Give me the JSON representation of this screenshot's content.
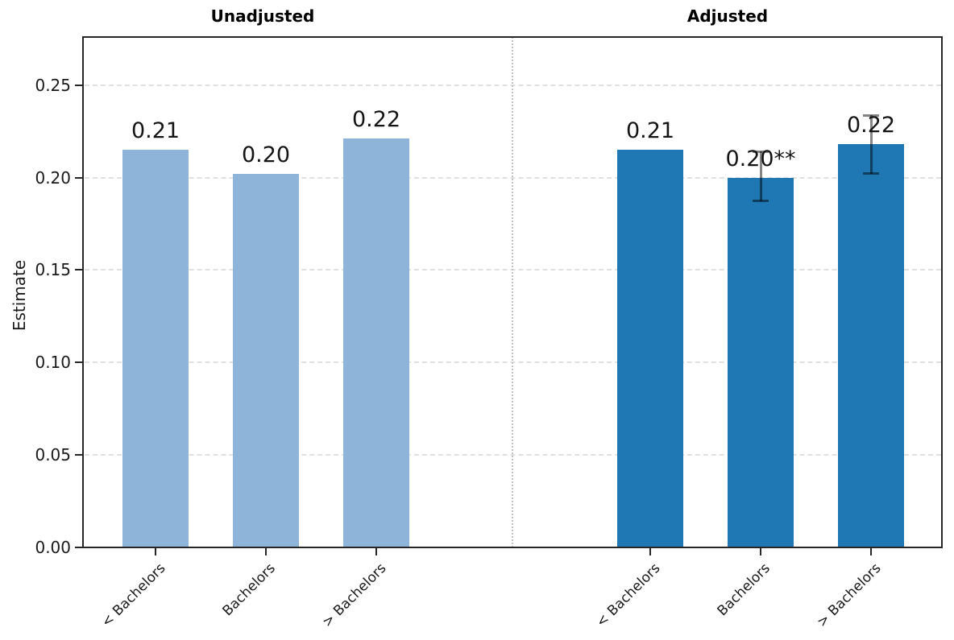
{
  "ylabel": "Estimate",
  "yticks": [
    "0.00",
    "0.05",
    "0.10",
    "0.15",
    "0.20",
    "0.25"
  ],
  "chart_data": [
    {
      "type": "bar",
      "title": "Unadjusted",
      "categories": [
        "< Bachelors",
        "Bachelors",
        "> Bachelors"
      ],
      "values": [
        0.215,
        0.202,
        0.221
      ],
      "bar_labels": [
        "0.21",
        "0.20",
        "0.22"
      ],
      "errors": [
        null,
        null,
        null
      ],
      "bar_color": "#8fb4d9",
      "xlabel": "",
      "ylabel": "Estimate",
      "ylim": [
        0,
        0.276
      ],
      "grid": "horizontal dashed"
    },
    {
      "type": "bar",
      "title": "Adjusted",
      "categories": [
        "< Bachelors",
        "Bachelors",
        "> Bachelors"
      ],
      "values": [
        0.215,
        0.2,
        0.218
      ],
      "bar_labels": [
        "0.21",
        "0.20**",
        "0.22"
      ],
      "errors": [
        null,
        [
          0.187,
          0.214
        ],
        [
          0.202,
          0.234
        ]
      ],
      "bar_color": "#1f77b4",
      "error_color": "rgba(0,0,0,0.48)",
      "xlabel": "",
      "ylabel": "Estimate",
      "ylim": [
        0,
        0.276
      ],
      "grid": "horizontal dashed"
    }
  ]
}
